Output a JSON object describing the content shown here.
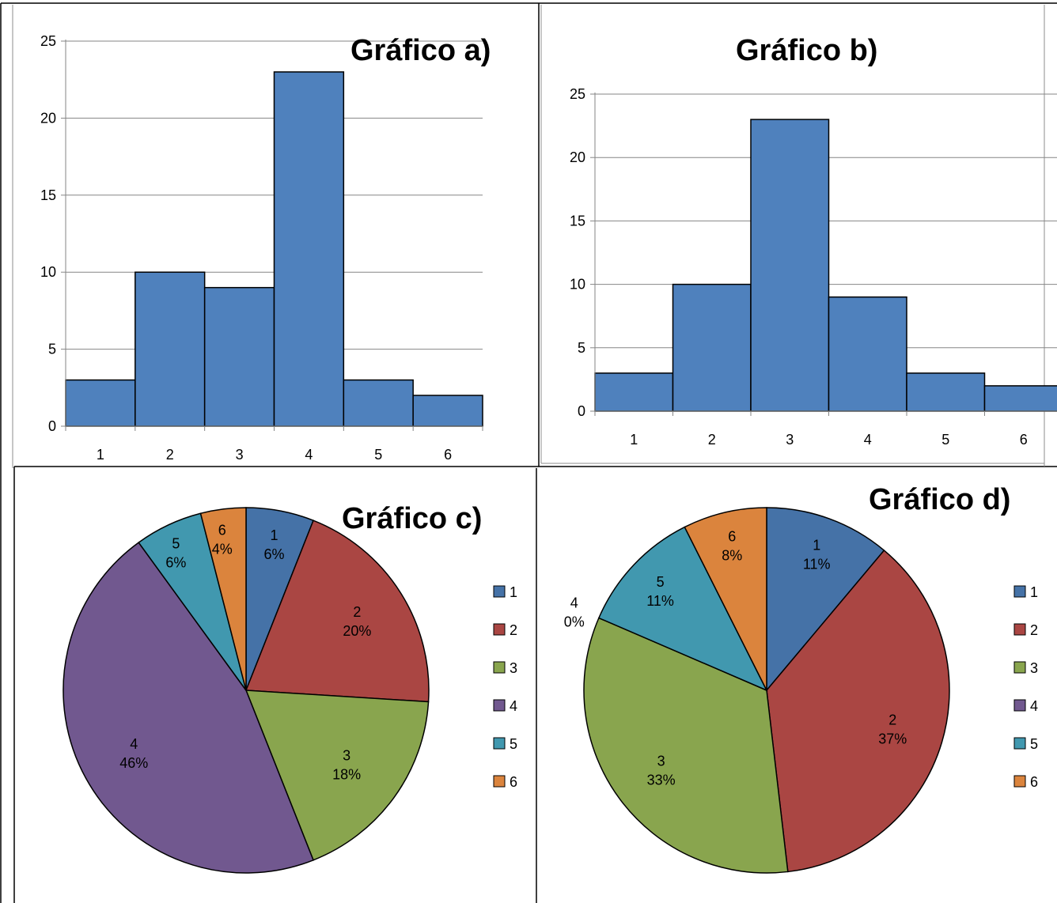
{
  "colors": {
    "bar": "#4f81bd",
    "slices": [
      "#4572a7",
      "#aa4643",
      "#89a54e",
      "#71588f",
      "#4198af",
      "#db843d"
    ]
  },
  "chart_data": [
    {
      "type": "bar",
      "title": "Gráfico a)",
      "categories": [
        "1",
        "2",
        "3",
        "4",
        "5",
        "6"
      ],
      "values": [
        3,
        10,
        9,
        23,
        3,
        2
      ],
      "ylim": [
        0,
        25
      ],
      "yticks": [
        "0",
        "5",
        "10",
        "15",
        "20",
        "25"
      ],
      "grid": true,
      "legend": "none"
    },
    {
      "type": "bar",
      "title": "Gráfico b)",
      "categories": [
        "1",
        "2",
        "3",
        "4",
        "5",
        "6"
      ],
      "values": [
        3,
        10,
        23,
        9,
        3,
        2
      ],
      "ylim": [
        0,
        25
      ],
      "yticks": [
        "0",
        "5",
        "10",
        "15",
        "20",
        "25"
      ],
      "grid": true,
      "legend": "none"
    },
    {
      "type": "pie",
      "title": "Gráfico c)",
      "labels": [
        "1",
        "2",
        "3",
        "4",
        "5",
        "6"
      ],
      "values": [
        3,
        10,
        9,
        23,
        3,
        2
      ],
      "percent_labels": [
        "6%",
        "20%",
        "18%",
        "46%",
        "6%",
        "4%"
      ],
      "legend": "right"
    },
    {
      "type": "pie",
      "title": "Gráfico d)",
      "labels": [
        "1",
        "2",
        "3",
        "4",
        "5",
        "6"
      ],
      "values": [
        3,
        10,
        9,
        0,
        3,
        2
      ],
      "percent_labels": [
        "11%",
        "37%",
        "33%",
        "0%",
        "11%",
        "8%"
      ],
      "legend": "right"
    }
  ]
}
